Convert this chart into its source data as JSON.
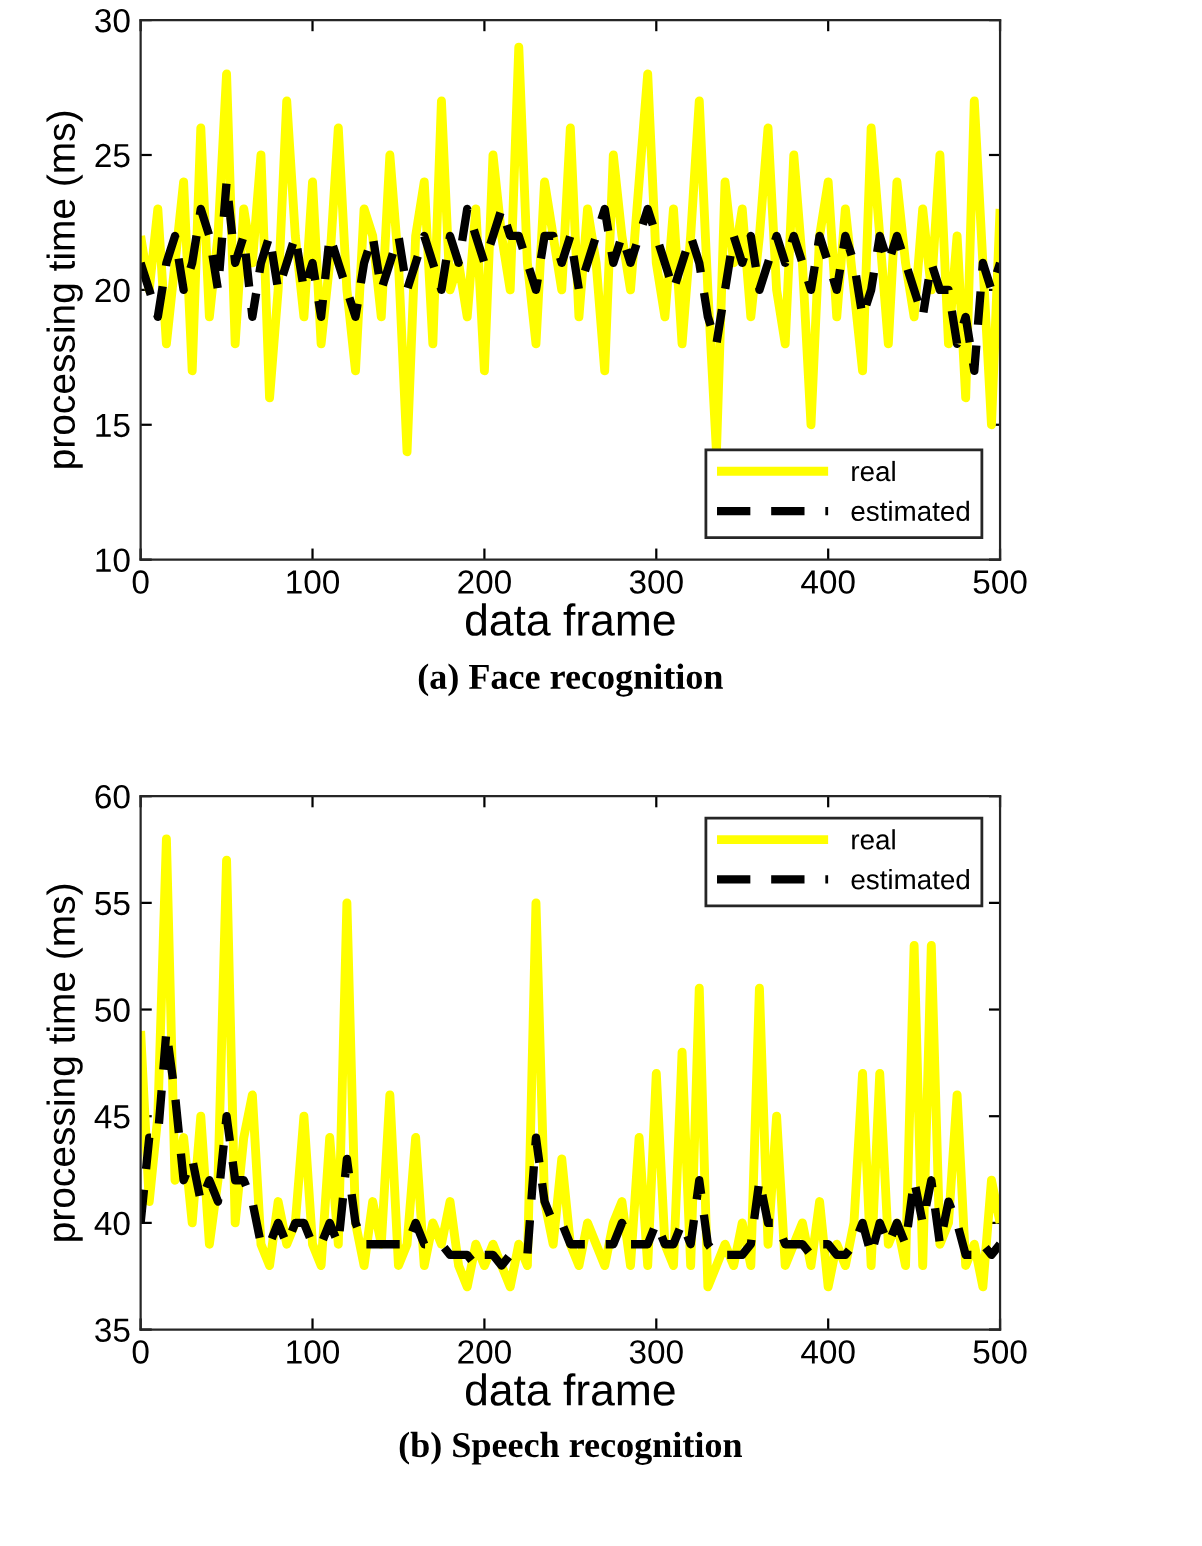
{
  "chart_data": [
    {
      "type": "line",
      "title": "(a) Face recognition",
      "xlabel": "data frame",
      "ylabel": "processing time (ms)",
      "x": [
        0,
        5,
        10,
        15,
        20,
        25,
        30,
        35,
        40,
        45,
        50,
        55,
        60,
        65,
        70,
        75,
        80,
        85,
        90,
        95,
        100,
        105,
        110,
        115,
        120,
        125,
        130,
        135,
        140,
        145,
        150,
        155,
        160,
        165,
        170,
        175,
        180,
        185,
        190,
        195,
        200,
        205,
        210,
        215,
        220,
        225,
        230,
        235,
        240,
        245,
        250,
        255,
        260,
        265,
        270,
        275,
        280,
        285,
        290,
        295,
        300,
        305,
        310,
        315,
        320,
        325,
        330,
        335,
        340,
        345,
        350,
        355,
        360,
        365,
        370,
        375,
        380,
        385,
        390,
        395,
        400,
        405,
        410,
        415,
        420,
        425,
        430,
        435,
        440,
        445,
        450,
        455,
        460,
        465,
        470,
        475,
        480,
        485,
        490,
        495,
        500
      ],
      "series": [
        {
          "name": "real",
          "color": "#ffff00",
          "line_style": "solid",
          "values": [
            22,
            20,
            23,
            18,
            21,
            24,
            17,
            26,
            19,
            22,
            28,
            18,
            23,
            21,
            25,
            16,
            20,
            27,
            22,
            19,
            24,
            18,
            21,
            26,
            20,
            17,
            23,
            22,
            19,
            25,
            21,
            14,
            22,
            24,
            18,
            27,
            20,
            21,
            19,
            23,
            17,
            25,
            22,
            20,
            29,
            21,
            18,
            24,
            22,
            20,
            26,
            19,
            23,
            21,
            17,
            25,
            22,
            20,
            24,
            28,
            21,
            19,
            23,
            18,
            22,
            27,
            20,
            14,
            24,
            21,
            23,
            19,
            22,
            26,
            20,
            18,
            25,
            21,
            15,
            22,
            24,
            19,
            23,
            20,
            17,
            26,
            22,
            18,
            24,
            21,
            19,
            23,
            20,
            25,
            18,
            22,
            16,
            27,
            21,
            15,
            23
          ]
        },
        {
          "name": "estimated",
          "color": "#000000",
          "line_style": "dashed",
          "values": [
            21,
            20,
            19,
            21,
            22,
            20,
            21,
            23,
            22,
            20,
            24,
            21,
            22,
            19,
            21,
            22,
            20,
            21,
            22,
            20,
            21,
            19,
            22,
            21,
            20,
            19,
            21,
            22,
            20,
            21,
            22,
            20,
            21,
            22,
            21,
            20,
            22,
            21,
            23,
            22,
            21,
            22,
            23,
            22,
            22,
            21,
            20,
            22,
            22,
            21,
            22,
            20,
            21,
            22,
            23,
            21,
            22,
            21,
            22,
            23,
            22,
            21,
            20,
            21,
            22,
            21,
            19,
            18,
            20,
            22,
            21,
            22,
            20,
            21,
            22,
            21,
            22,
            21,
            20,
            22,
            21,
            20,
            22,
            21,
            19,
            20,
            22,
            21,
            22,
            21,
            20,
            19,
            21,
            20,
            20,
            18,
            19,
            17,
            21,
            20,
            21
          ]
        }
      ],
      "xlim": [
        0,
        500
      ],
      "xticks": [
        0,
        100,
        200,
        300,
        400,
        500
      ],
      "ylim": [
        10,
        30
      ],
      "yticks": [
        10,
        15,
        20,
        25,
        30
      ],
      "grid": false,
      "legend": "bottom right"
    },
    {
      "type": "line",
      "title": "(b) Speech recognition",
      "xlabel": "data frame",
      "ylabel": "processing time (ms)",
      "x": [
        0,
        5,
        10,
        15,
        20,
        25,
        30,
        35,
        40,
        45,
        50,
        55,
        60,
        65,
        70,
        75,
        80,
        85,
        90,
        95,
        100,
        105,
        110,
        115,
        120,
        125,
        130,
        135,
        140,
        145,
        150,
        155,
        160,
        165,
        170,
        175,
        180,
        185,
        190,
        195,
        200,
        205,
        210,
        215,
        220,
        225,
        230,
        235,
        240,
        245,
        250,
        255,
        260,
        265,
        270,
        275,
        280,
        285,
        290,
        295,
        300,
        305,
        310,
        315,
        320,
        325,
        330,
        335,
        340,
        345,
        350,
        355,
        360,
        365,
        370,
        375,
        380,
        385,
        390,
        395,
        400,
        405,
        410,
        415,
        420,
        425,
        430,
        435,
        440,
        445,
        450,
        455,
        460,
        465,
        470,
        475,
        480,
        485,
        490,
        495,
        500
      ],
      "series": [
        {
          "name": "real",
          "color": "#ffff00",
          "line_style": "solid",
          "values": [
            49,
            41,
            45,
            58,
            42,
            44,
            40,
            45,
            39,
            42,
            57,
            40,
            44,
            46,
            39,
            38,
            41,
            39,
            40,
            45,
            39,
            38,
            44,
            39,
            55,
            40,
            38,
            41,
            39,
            46,
            38,
            39,
            44,
            38,
            40,
            39,
            41,
            38,
            37,
            39,
            38,
            39,
            38,
            37,
            39,
            38,
            55,
            41,
            39,
            43,
            39,
            38,
            40,
            39,
            38,
            40,
            41,
            38,
            44,
            38,
            47,
            39,
            38,
            48,
            38,
            51,
            37,
            38,
            39,
            38,
            40,
            38,
            51,
            39,
            45,
            38,
            39,
            40,
            38,
            41,
            37,
            39,
            38,
            40,
            47,
            38,
            47,
            39,
            40,
            38,
            53,
            38,
            53,
            39,
            40,
            46,
            38,
            39,
            37,
            42,
            40
          ]
        },
        {
          "name": "estimated",
          "color": "#000000",
          "line_style": "dashed",
          "values": [
            40,
            44,
            44,
            49,
            46,
            42,
            43,
            41,
            42,
            41,
            45,
            42,
            42,
            41,
            39,
            39,
            40,
            39,
            40,
            40,
            39,
            39,
            40,
            39,
            43,
            40,
            39,
            39,
            39,
            39,
            39,
            39,
            40,
            39,
            39,
            39,
            38.5,
            38.5,
            38.5,
            38,
            38.5,
            38.5,
            38,
            38.5,
            38.5,
            38.5,
            44,
            41,
            40,
            40,
            39,
            39,
            39,
            39,
            39,
            39,
            40,
            39,
            39,
            39,
            40,
            39,
            39,
            40,
            39,
            42,
            39,
            38.5,
            38.5,
            38.5,
            38.5,
            39,
            42,
            40,
            40,
            39,
            39,
            39,
            38.5,
            39,
            39,
            38.5,
            38.5,
            39,
            40,
            38.5,
            40,
            39,
            40,
            39,
            42,
            40,
            42,
            39,
            41,
            40,
            38.5,
            38.5,
            39,
            38.5,
            39
          ]
        }
      ],
      "xlim": [
        0,
        500
      ],
      "xticks": [
        0,
        100,
        200,
        300,
        400,
        500
      ],
      "ylim": [
        35,
        60
      ],
      "yticks": [
        35,
        40,
        45,
        50,
        55,
        60
      ],
      "grid": false,
      "legend": "top right"
    }
  ]
}
